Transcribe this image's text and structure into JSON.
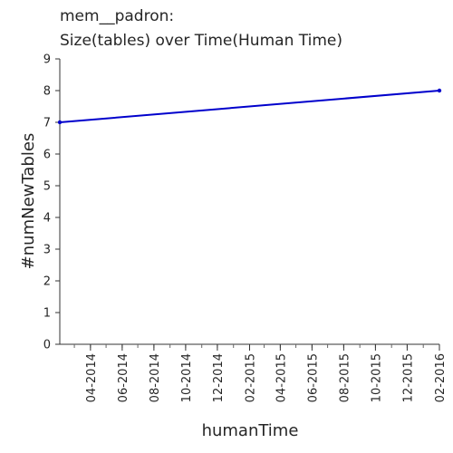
{
  "chart_data": {
    "type": "line",
    "title_line1": "mem__padron:",
    "title_line2": "Size(tables) over Time(Human Time)",
    "xlabel": "humanTime",
    "ylabel": "#numNewTables",
    "ylim": [
      0,
      9
    ],
    "yticks": [
      "0",
      "1",
      "2",
      "3",
      "4",
      "5",
      "6",
      "7",
      "8",
      "9"
    ],
    "xlim": [
      "2014-02-01",
      "2016-02-01"
    ],
    "xtick_labels": [
      "04-2014",
      "06-2014",
      "08-2014",
      "10-2014",
      "12-2014",
      "02-2015",
      "04-2015",
      "06-2015",
      "08-2015",
      "10-2015",
      "12-2015",
      "02-2016"
    ],
    "xtick_dates": [
      "2014-04-01",
      "2014-06-01",
      "2014-08-01",
      "2014-10-01",
      "2014-12-01",
      "2015-02-01",
      "2015-04-01",
      "2015-06-01",
      "2015-08-01",
      "2015-10-01",
      "2015-12-01",
      "2016-02-01"
    ],
    "series": [
      {
        "x": [
          "2014-02-01",
          "2016-02-01"
        ],
        "y": [
          7,
          8
        ]
      }
    ],
    "line_color": "#0000cc",
    "grid": false
  }
}
